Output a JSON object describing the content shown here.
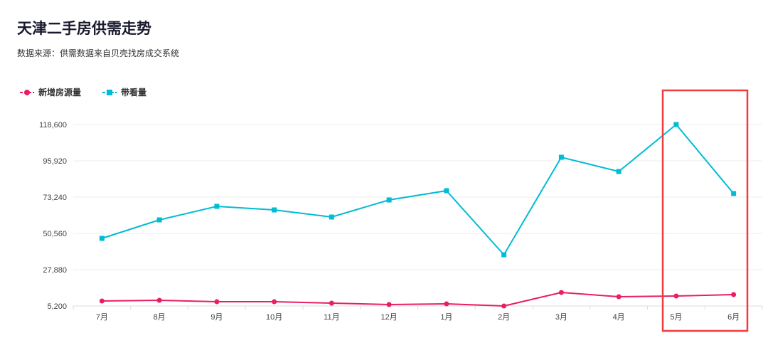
{
  "header": {
    "title": "天津二手房供需走势",
    "subtitle": "数据来源：供需数据来自贝壳找房成交系统"
  },
  "colors": {
    "supply": "#e91e63",
    "views": "#00bcd4",
    "highlight": "#f03c3c"
  },
  "chart_data": {
    "type": "line",
    "title": "天津二手房供需走势",
    "categories": [
      "7月",
      "8月",
      "9月",
      "10月",
      "11月",
      "12月",
      "1月",
      "2月",
      "3月",
      "4月",
      "5月",
      "6月"
    ],
    "series": [
      {
        "name": "新增房源量",
        "marker": "circle",
        "values": [
          8300,
          8760,
          7870,
          7870,
          6980,
          6090,
          6530,
          5200,
          13650,
          10980,
          11430,
          12320
        ]
      },
      {
        "name": "带看量",
        "marker": "square",
        "values": [
          47450,
          59010,
          67460,
          65230,
          60790,
          71460,
          77240,
          37220,
          98140,
          89250,
          118600,
          75460
        ]
      }
    ],
    "yticks": [
      "5,200",
      "27,880",
      "50,560",
      "73,240",
      "95,920",
      "118,600"
    ],
    "ylim": [
      5200,
      118600
    ],
    "grid": true,
    "legend": "top-left",
    "highlight_categories": [
      "5月",
      "6月"
    ]
  }
}
